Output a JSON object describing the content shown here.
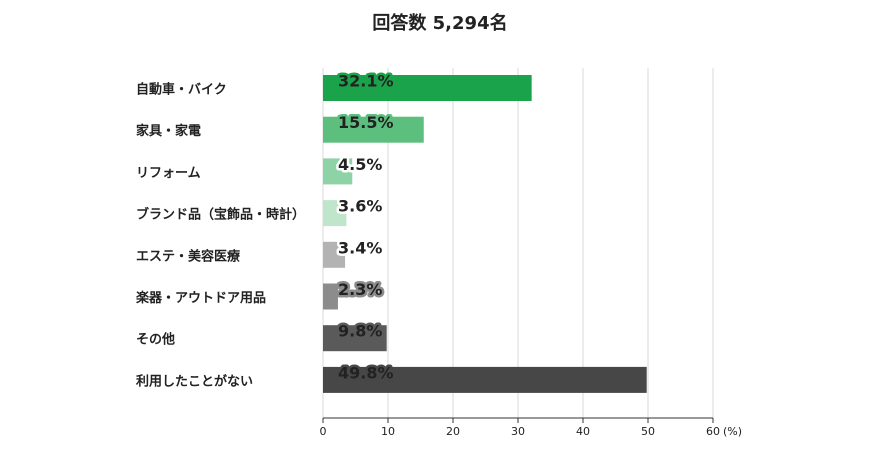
{
  "chart_data": {
    "type": "hbar",
    "title": "回答数 5,294名",
    "categories": [
      "自動車・バイク",
      "家具・家電",
      "リフォーム",
      "ブランド品（宝飾品・時計）",
      "エステ・美容医療",
      "楽器・アウトドア用品",
      "その他",
      "利用したことがない"
    ],
    "values": [
      32.1,
      15.5,
      4.5,
      3.6,
      3.4,
      2.3,
      9.8,
      49.8
    ],
    "value_labels": [
      "32.1%",
      "15.5%",
      "4.5%",
      "3.6%",
      "3.4%",
      "2.3%",
      "9.8%",
      "49.8%"
    ],
    "colors": [
      "#1aa34a",
      "#5cbf7e",
      "#8dd3a5",
      "#bfe6cb",
      "#b3b3b3",
      "#8c8c8c",
      "#5a5a5a",
      "#474747"
    ],
    "xlim": [
      0,
      60
    ],
    "xticks": [
      0,
      10,
      20,
      30,
      40,
      50,
      60
    ],
    "xlabel": "(%)",
    "grid": true
  }
}
